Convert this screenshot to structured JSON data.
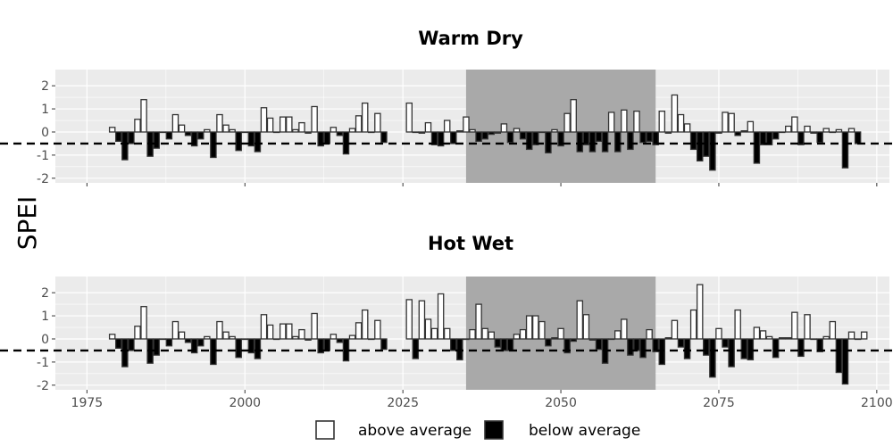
{
  "chart_data": {
    "type": "bar",
    "ylabel": "SPEI",
    "xlim": [
      1970,
      2102
    ],
    "ylim": [
      -2.2,
      2.7
    ],
    "x_ticks": [
      1975,
      2000,
      2025,
      2050,
      2075,
      2100
    ],
    "y_ticks": [
      -2,
      -1,
      0,
      1,
      2
    ],
    "threshold": -0.5,
    "highlight_range": [
      2035,
      2065
    ],
    "grid": true,
    "legend": {
      "position": "bottom",
      "items": [
        {
          "label": "above average",
          "fill": "#ffffff"
        },
        {
          "label": "below average",
          "fill": "#000000"
        }
      ]
    },
    "colors": {
      "panel_bg": "#ebebeb",
      "grid": "#ffffff",
      "highlight": "#a9a9a9",
      "above": "#ffffff",
      "below": "#000000",
      "bar_outline": "#333333"
    },
    "panels": [
      {
        "title": "Warm Dry",
        "x_start": 1979,
        "values": [
          0.2,
          -0.4,
          -1.2,
          -0.5,
          0.55,
          1.4,
          -1.05,
          -0.7,
          0.0,
          -0.3,
          0.75,
          0.3,
          -0.15,
          -0.6,
          -0.3,
          0.1,
          -1.1,
          0.75,
          0.3,
          0.1,
          -0.8,
          0.0,
          -0.6,
          -0.85,
          1.05,
          0.6,
          0.0,
          0.65,
          0.65,
          0.1,
          0.4,
          -0.05,
          1.1,
          -0.6,
          -0.5,
          0.2,
          -0.15,
          -0.95,
          0.15,
          0.7,
          1.25,
          0.0,
          0.8,
          -0.45,
          null,
          null,
          null,
          1.25,
          0.0,
          -0.05,
          0.4,
          -0.55,
          -0.6,
          0.5,
          -0.5,
          0.05,
          0.65,
          0.1,
          -0.4,
          -0.3,
          -0.1,
          -0.05,
          0.35,
          -0.45,
          0.15,
          -0.3,
          -0.75,
          -0.55,
          0.0,
          -0.9,
          0.1,
          -0.6,
          0.8,
          1.4,
          -0.85,
          -0.55,
          -0.85,
          -0.4,
          -0.85,
          0.85,
          -0.85,
          0.95,
          -0.75,
          0.9,
          -0.45,
          -0.4,
          -0.55,
          0.9,
          -0.05,
          1.6,
          0.75,
          0.35,
          -0.75,
          -1.25,
          -1.05,
          -1.65,
          -0.05,
          0.85,
          0.8,
          -0.15,
          0.05,
          0.45,
          -1.35,
          -0.55,
          -0.55,
          -0.3,
          0.0,
          0.25,
          0.65,
          -0.55,
          0.25,
          -0.05,
          -0.45,
          0.15,
          0.0,
          0.1,
          -1.55,
          0.15,
          -0.5
        ]
      },
      {
        "title": "Hot Wet",
        "x_start": 1979,
        "values": [
          0.2,
          -0.4,
          -1.2,
          -0.5,
          0.55,
          1.4,
          -1.05,
          -0.7,
          0.0,
          -0.3,
          0.75,
          0.3,
          -0.15,
          -0.6,
          -0.3,
          0.1,
          -1.1,
          0.75,
          0.3,
          0.1,
          -0.8,
          0.0,
          -0.6,
          -0.85,
          1.05,
          0.6,
          0.0,
          0.65,
          0.65,
          0.1,
          0.4,
          -0.05,
          1.1,
          -0.6,
          -0.5,
          0.2,
          -0.15,
          -0.95,
          0.15,
          0.7,
          1.25,
          0.0,
          0.8,
          -0.45,
          null,
          null,
          null,
          1.7,
          -0.85,
          1.65,
          0.85,
          0.45,
          1.95,
          0.45,
          -0.5,
          -0.9,
          0.0,
          0.4,
          1.5,
          0.45,
          0.3,
          -0.35,
          -0.5,
          -0.5,
          0.2,
          0.4,
          1.0,
          1.0,
          0.75,
          -0.3,
          0.05,
          0.45,
          -0.6,
          -0.1,
          1.65,
          1.05,
          -0.05,
          -0.45,
          -1.05,
          0.0,
          0.35,
          0.85,
          -0.7,
          -0.5,
          -0.8,
          0.4,
          -0.55,
          -1.1,
          0.05,
          0.8,
          -0.35,
          -0.85,
          1.25,
          2.35,
          -0.7,
          -1.65,
          0.45,
          -0.35,
          -1.2,
          1.25,
          -0.85,
          -0.9,
          0.5,
          0.35,
          0.1,
          -0.8,
          0.05,
          0.05,
          1.15,
          -0.75,
          1.05,
          0.0,
          -0.55,
          0.1,
          0.75,
          -1.45,
          -1.95,
          0.3,
          0.0,
          0.3
        ]
      }
    ]
  }
}
